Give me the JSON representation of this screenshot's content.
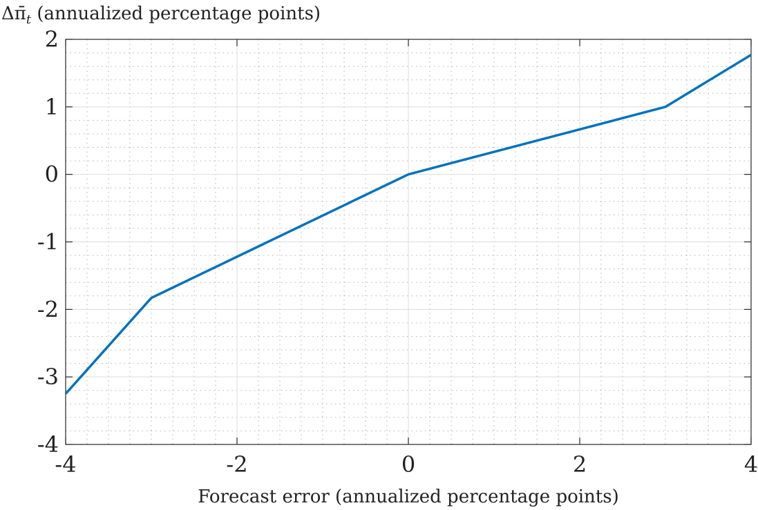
{
  "chart_data": {
    "type": "line",
    "title": "",
    "xlabel": "Forecast error (annualized percentage points)",
    "ylabel": {
      "symbol": "Δπ̄",
      "subscript": "t",
      "text": " (annualized percentage points)"
    },
    "xlim": [
      -4,
      4
    ],
    "ylim": [
      -4,
      2
    ],
    "xticks": [
      -4,
      -2,
      0,
      2,
      4
    ],
    "yticks": [
      -4,
      -3,
      -2,
      -1,
      0,
      1,
      2
    ],
    "xtick_labels": [
      "-4",
      "-2",
      "0",
      "2",
      "4"
    ],
    "ytick_labels": [
      "-4",
      "-3",
      "-2",
      "-1",
      "0",
      "1",
      "2"
    ],
    "grid": true,
    "minor_grid": true,
    "series": [
      {
        "color": "#0072BD",
        "x": [
          -4,
          -3,
          0,
          3,
          4
        ],
        "y": [
          -3.25,
          -1.83,
          0,
          1,
          1.77
        ]
      }
    ]
  }
}
